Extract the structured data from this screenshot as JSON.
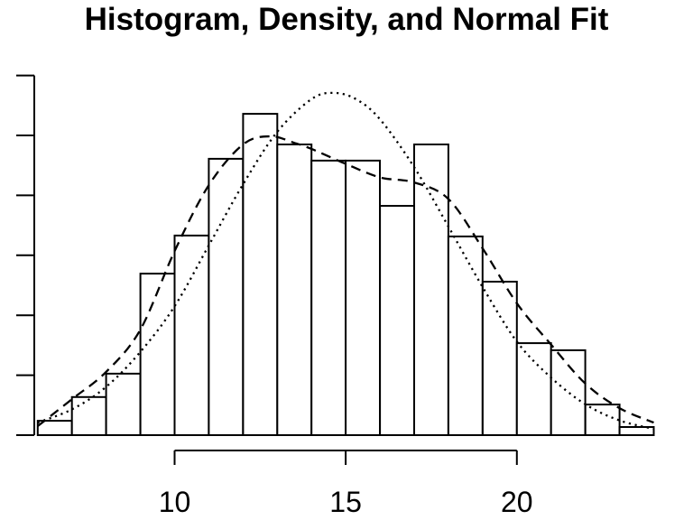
{
  "chart_data": {
    "type": "histogram",
    "title": "Histogram, Density, and Normal Fit",
    "xlabel": "",
    "ylabel": "",
    "xlim": [
      6,
      24
    ],
    "ylim": [
      0,
      0.12
    ],
    "grid": false,
    "legend": "none",
    "x_ticks": [
      10,
      15,
      20
    ],
    "x_tick_labels": [
      "10",
      "15",
      "20"
    ],
    "y_ticks": [
      0,
      0.02,
      0.04,
      0.06,
      0.08,
      0.1,
      0.12
    ],
    "y_tick_labels": [],
    "colors": {
      "foreground": "#000000",
      "background": "#ffffff",
      "bar_fill": "#ffffff",
      "bar_border": "#000000"
    },
    "histogram": {
      "bin_edges": [
        6,
        7,
        8,
        9,
        10,
        11,
        12,
        13,
        14,
        15,
        16,
        17,
        18,
        19,
        20,
        21,
        22,
        23,
        24
      ],
      "densities": [
        0.0048,
        0.0127,
        0.0205,
        0.0539,
        0.0666,
        0.0922,
        0.1072,
        0.097,
        0.0916,
        0.0916,
        0.0765,
        0.097,
        0.0663,
        0.0512,
        0.0307,
        0.0283,
        0.0102,
        0.0027
      ]
    },
    "series": [
      {
        "name": "Density",
        "style": "dashed",
        "color": "#000000",
        "points": [
          [
            6,
            0.003
          ],
          [
            7,
            0.012
          ],
          [
            8,
            0.0211
          ],
          [
            9,
            0.0352
          ],
          [
            10,
            0.0614
          ],
          [
            11,
            0.0834
          ],
          [
            12,
            0.097
          ],
          [
            12.8,
            0.0997
          ],
          [
            13.5,
            0.0975
          ],
          [
            14,
            0.0955
          ],
          [
            15,
            0.0905
          ],
          [
            16,
            0.086
          ],
          [
            17,
            0.0843
          ],
          [
            18,
            0.0788
          ],
          [
            19,
            0.0623
          ],
          [
            20,
            0.044
          ],
          [
            21,
            0.0302
          ],
          [
            22,
            0.0172
          ],
          [
            23,
            0.009
          ],
          [
            24,
            0.0042
          ]
        ]
      },
      {
        "name": "Normal Fit",
        "style": "dotted",
        "color": "#000000",
        "points": [
          [
            6,
            0.0042
          ],
          [
            7,
            0.0086
          ],
          [
            8,
            0.0161
          ],
          [
            9,
            0.0278
          ],
          [
            10,
            0.043
          ],
          [
            11,
            0.0633
          ],
          [
            12,
            0.0837
          ],
          [
            13,
            0.1012
          ],
          [
            14,
            0.1121
          ],
          [
            14.65,
            0.1142
          ],
          [
            15.3,
            0.1121
          ],
          [
            16,
            0.1054
          ],
          [
            17,
            0.0894
          ],
          [
            18,
            0.0696
          ],
          [
            19,
            0.0494
          ],
          [
            20,
            0.0312
          ],
          [
            21,
            0.0192
          ],
          [
            22,
            0.0103
          ],
          [
            23,
            0.0049
          ],
          [
            24,
            0.0021
          ]
        ]
      }
    ]
  }
}
